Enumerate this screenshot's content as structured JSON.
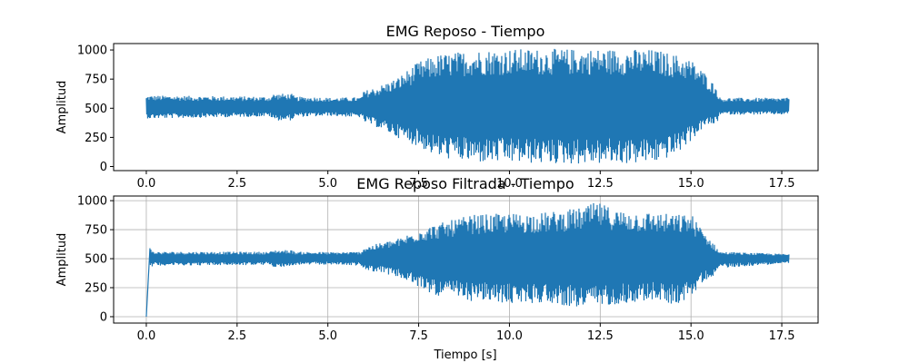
{
  "chart_data": [
    {
      "type": "line",
      "title": "EMG Reposo - Tiempo",
      "xlabel": "",
      "ylabel": "Amplitud",
      "xlim": [
        -0.9,
        18.5
      ],
      "ylim": [
        -35,
        1055
      ],
      "xticks": [
        0.0,
        2.5,
        5.0,
        7.5,
        10.0,
        12.5,
        15.0,
        17.5
      ],
      "xtick_labels": [
        "0.0",
        "2.5",
        "5.0",
        "7.5",
        "10.0",
        "12.5",
        "15.0",
        "17.5"
      ],
      "yticks": [
        0,
        250,
        500,
        750,
        1000
      ],
      "ytick_labels": [
        "0",
        "250",
        "500",
        "750",
        "1000"
      ],
      "grid": false,
      "color": "#1f77b4",
      "x_range": [
        0.0,
        17.7
      ],
      "center": 510,
      "envelope": {
        "t": [
          0.0,
          0.05,
          3.4,
          3.5,
          4.0,
          4.1,
          4.9,
          5.0,
          5.9,
          6.0,
          6.4,
          6.9,
          7.5,
          8.0,
          9.0,
          10.0,
          11.0,
          12.0,
          13.0,
          14.0,
          14.6,
          15.0,
          15.4,
          15.7,
          15.8,
          17.7
        ],
        "upper": [
          600,
          610,
          600,
          625,
          625,
          600,
          595,
          590,
          595,
          650,
          690,
          760,
          900,
          960,
          1000,
          1010,
          1010,
          1010,
          1010,
          1005,
          960,
          920,
          800,
          680,
          590,
          590
        ],
        "lower": [
          420,
          410,
          430,
          395,
          395,
          425,
          430,
          435,
          420,
          380,
          330,
          250,
          170,
          80,
          30,
          30,
          20,
          20,
          20,
          30,
          100,
          220,
          350,
          360,
          445,
          445
        ]
      }
    },
    {
      "type": "line",
      "title": "EMG Reposo Filtrada - Tiempo",
      "xlabel": "Tiempo [s]",
      "ylabel": "Amplitud",
      "xlim": [
        -0.9,
        18.5
      ],
      "ylim": [
        -55,
        1040
      ],
      "xticks": [
        0.0,
        2.5,
        5.0,
        7.5,
        10.0,
        12.5,
        15.0,
        17.5
      ],
      "xtick_labels": [
        "0.0",
        "2.5",
        "5.0",
        "7.5",
        "10.0",
        "12.5",
        "15.0",
        "17.5"
      ],
      "yticks": [
        0,
        250,
        500,
        750,
        1000
      ],
      "ytick_labels": [
        "0",
        "250",
        "500",
        "750",
        "1000"
      ],
      "grid": true,
      "color": "#1f77b4",
      "x_range": [
        0.0,
        17.7
      ],
      "center": 505,
      "transient": {
        "t": [
          0.0,
          0.1
        ],
        "values": [
          0,
          590
        ]
      },
      "envelope": {
        "t": [
          0.1,
          0.2,
          3.4,
          3.5,
          4.0,
          4.1,
          4.9,
          5.0,
          5.9,
          6.0,
          6.5,
          7.0,
          7.5,
          8.0,
          9.0,
          10.0,
          11.0,
          12.0,
          12.4,
          13.0,
          14.0,
          14.6,
          15.0,
          15.3,
          15.6,
          15.8,
          17.7
        ],
        "upper": [
          590,
          560,
          560,
          575,
          575,
          560,
          558,
          556,
          560,
          600,
          640,
          680,
          760,
          800,
          880,
          890,
          900,
          940,
          990,
          920,
          900,
          880,
          890,
          760,
          640,
          560,
          540
        ],
        "lower": [
          420,
          440,
          445,
          430,
          430,
          445,
          448,
          450,
          440,
          400,
          380,
          330,
          250,
          180,
          130,
          110,
          120,
          70,
          90,
          110,
          140,
          100,
          170,
          290,
          350,
          420,
          460
        ]
      }
    }
  ]
}
